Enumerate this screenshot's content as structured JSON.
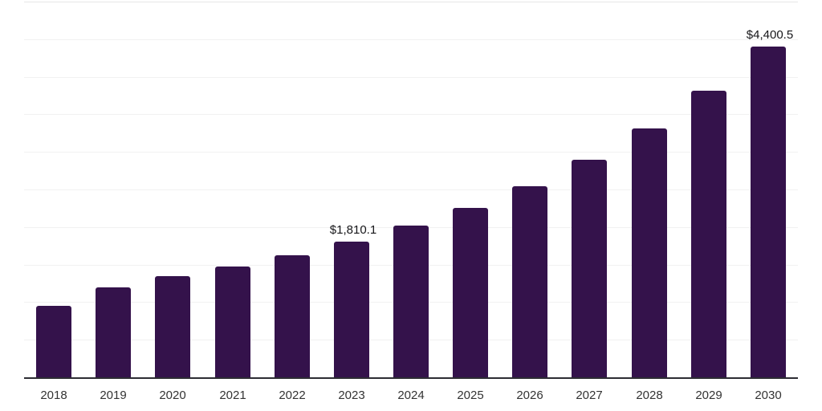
{
  "chart_data": {
    "type": "bar",
    "title": "",
    "xlabel": "",
    "ylabel": "",
    "categories": [
      "2018",
      "2019",
      "2020",
      "2021",
      "2022",
      "2023",
      "2024",
      "2025",
      "2026",
      "2027",
      "2028",
      "2029",
      "2030"
    ],
    "values": [
      950,
      1195,
      1345,
      1475,
      1625,
      1810.1,
      2020,
      2255,
      2540,
      2895,
      3310,
      3815,
      4400.5
    ],
    "data_labels": [
      {
        "category": "2023",
        "text": "$1,810.1"
      },
      {
        "category": "2030",
        "text": "$4,400.5"
      }
    ],
    "ylim": [
      0,
      5000
    ],
    "grid_interval": 500,
    "grid": "horizontal-only",
    "y_tick_labels_visible": false,
    "legend": "none",
    "colors": {
      "bar": "#34124B",
      "axis_line": "#2D2D33",
      "gridline": "#F1F1F1",
      "gridline_top": "#E7E7E7",
      "x_tick_label": "#333333",
      "data_label": "#161619",
      "background": "#FFFFFF"
    }
  }
}
